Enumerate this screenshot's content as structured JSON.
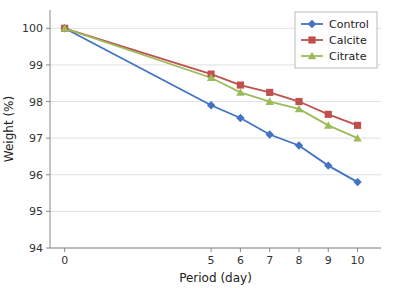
{
  "chart_data": {
    "type": "line",
    "xlabel": "Period (day)",
    "ylabel": "Weight (%)",
    "x": [
      0,
      5,
      6,
      7,
      8,
      9,
      10
    ],
    "series": [
      {
        "name": "Control",
        "color": "#4472C4",
        "marker": "diamond",
        "values": [
          100,
          97.9,
          97.55,
          97.1,
          96.8,
          96.25,
          95.8
        ]
      },
      {
        "name": "Calcite",
        "color": "#C0504D",
        "marker": "square",
        "values": [
          100,
          98.75,
          98.45,
          98.25,
          98.0,
          97.65,
          97.35
        ]
      },
      {
        "name": "Citrate",
        "color": "#9BBB59",
        "marker": "triangle",
        "values": [
          100,
          98.65,
          98.25,
          98.0,
          97.8,
          97.35,
          97.0
        ]
      }
    ],
    "xlim": [
      -0.5,
      10.8
    ],
    "ylim": [
      94,
      100.5
    ],
    "xticks": [
      0,
      5,
      6,
      7,
      8,
      9,
      10
    ],
    "yticks": [
      94,
      95,
      96,
      97,
      98,
      99,
      100
    ],
    "grid": "y",
    "legend": "upper right"
  }
}
